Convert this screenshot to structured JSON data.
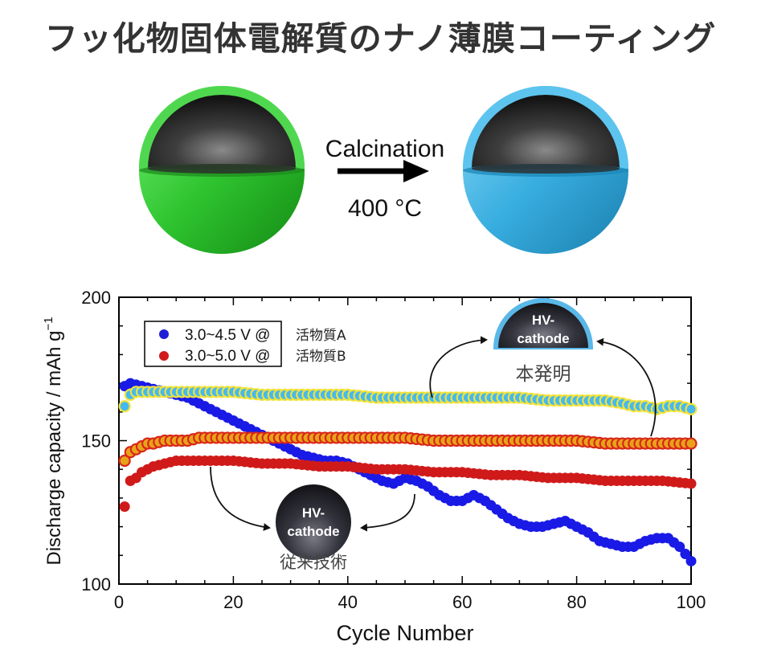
{
  "page": {
    "title": "フッ化物固体電解質のナノ薄膜コーティング"
  },
  "schematic": {
    "arrow_label_top": "Calcination",
    "arrow_label_bottom": "400 °C",
    "shell_color_before": "#3bd23b",
    "shell_color_after": "#3ab4e6"
  },
  "callouts": {
    "invention_particle_label": "HV-\ncathode",
    "invention_label": "本発明",
    "conventional_particle_label": "HV-\ncathode",
    "conventional_label": "従来技術"
  },
  "chart_data": {
    "type": "scatter",
    "xlabel": "Cycle Number",
    "ylabel": "Discharge capacity / mAh g",
    "ylabel_superscript": "−1",
    "xlim": [
      0,
      100
    ],
    "ylim": [
      100,
      200
    ],
    "xticks": [
      0,
      20,
      40,
      60,
      80,
      100
    ],
    "yticks": [
      100,
      150,
      200
    ],
    "grid": false,
    "legend_position": "top-left",
    "legend": [
      {
        "label": "3.0~4.5 V @",
        "material": "活物質A",
        "color": "#1f1fd6"
      },
      {
        "label": "3.0~5.0 V @",
        "material": "活物質B",
        "color": "#d01a1a"
      }
    ],
    "series": [
      {
        "color": "#1a1ae6",
        "style": "plain",
        "x": [
          1,
          2,
          4,
          6,
          8,
          10,
          12,
          14,
          16,
          18,
          20,
          22,
          24,
          26,
          28,
          30,
          32,
          34,
          36,
          38,
          40,
          42,
          44,
          46,
          48,
          50,
          52,
          54,
          56,
          58,
          60,
          62,
          64,
          66,
          68,
          70,
          72,
          74,
          76,
          78,
          80,
          82,
          84,
          86,
          88,
          90,
          92,
          94,
          96,
          98,
          100
        ],
        "y": [
          169,
          170,
          169,
          168,
          167,
          166,
          165,
          163,
          161,
          159,
          157,
          155,
          153,
          151,
          149,
          147,
          145,
          144,
          143,
          143,
          142,
          140,
          138,
          136,
          135,
          137,
          136,
          134,
          131,
          129,
          129,
          131,
          129,
          126,
          123,
          121,
          120,
          120,
          121,
          122,
          120,
          118,
          115,
          114,
          113,
          113,
          115,
          116,
          116,
          113,
          108
        ]
      },
      {
        "color": "#d01a1a",
        "style": "plain",
        "x": [
          1,
          2,
          3,
          4,
          5,
          6,
          8,
          10,
          12,
          14,
          16,
          18,
          20,
          25,
          30,
          35,
          40,
          45,
          50,
          55,
          60,
          65,
          70,
          75,
          80,
          85,
          90,
          95,
          100
        ],
        "y": [
          127,
          136,
          137,
          139,
          140,
          141,
          142,
          143,
          143,
          143,
          143,
          143,
          143,
          142,
          142,
          141,
          141,
          140,
          140,
          139,
          139,
          138,
          138,
          137,
          137,
          136,
          136,
          136,
          135
        ]
      },
      {
        "color": "#e8a21a",
        "style": "halo-red",
        "x": [
          1,
          2,
          3,
          4,
          5,
          6,
          8,
          10,
          12,
          14,
          16,
          18,
          20,
          25,
          30,
          35,
          40,
          45,
          50,
          55,
          60,
          65,
          70,
          75,
          80,
          85,
          90,
          95,
          100
        ],
        "y": [
          143,
          146,
          147,
          148,
          149,
          149,
          150,
          150,
          150,
          151,
          151,
          151,
          151,
          151,
          151,
          151,
          151,
          151,
          151,
          150,
          150,
          150,
          150,
          150,
          150,
          149,
          149,
          149,
          149
        ]
      },
      {
        "color": "#45b9f0",
        "style": "halo-yellow",
        "x": [
          1,
          2,
          3,
          4,
          5,
          6,
          8,
          10,
          12,
          14,
          16,
          18,
          20,
          25,
          30,
          35,
          40,
          45,
          50,
          55,
          60,
          65,
          70,
          75,
          80,
          85,
          88,
          90,
          92,
          94,
          96,
          98,
          100
        ],
        "y": [
          162,
          166,
          167,
          167,
          167,
          167,
          167,
          167,
          167,
          167,
          167,
          167,
          167,
          166,
          166,
          166,
          166,
          165,
          165,
          165,
          165,
          165,
          165,
          164,
          164,
          164,
          163,
          162,
          162,
          161,
          162,
          162,
          161
        ]
      }
    ]
  }
}
